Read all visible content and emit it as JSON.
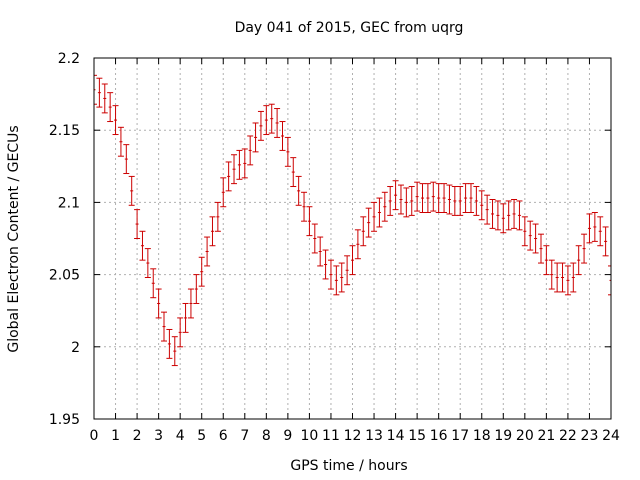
{
  "chart_data": {
    "type": "scatter",
    "title": "Day 041 of 2015, GEC from uqrg",
    "xlabel": "GPS time / hours",
    "ylabel": "Global Electron Content / GECUs",
    "xlim": [
      0,
      24
    ],
    "ylim": [
      1.95,
      2.2
    ],
    "xticks": [
      "0",
      "1",
      "2",
      "3",
      "4",
      "5",
      "6",
      "7",
      "8",
      "9",
      "10",
      "11",
      "12",
      "13",
      "14",
      "15",
      "16",
      "17",
      "18",
      "19",
      "20",
      "21",
      "22",
      "23",
      "24"
    ],
    "yticks": [
      "1.95",
      "2",
      "2.05",
      "2.1",
      "2.15",
      "2.2"
    ],
    "grid": true,
    "legend": "none",
    "series_color": "#cc0000",
    "error": 0.01,
    "series": [
      {
        "x": [
          0.0,
          0.25,
          0.5,
          0.75,
          1.0,
          1.25,
          1.5,
          1.75,
          2.0,
          2.25,
          2.5,
          2.75,
          3.0,
          3.25,
          3.5,
          3.75,
          4.0,
          4.25,
          4.5,
          4.75,
          5.0,
          5.25,
          5.5,
          5.75,
          6.0,
          6.25,
          6.5,
          6.75,
          7.0,
          7.25,
          7.5,
          7.75,
          8.0,
          8.25,
          8.5,
          8.75,
          9.0,
          9.25,
          9.5,
          9.75,
          10.0,
          10.25,
          10.5,
          10.75,
          11.0,
          11.25,
          11.5,
          11.75,
          12.0,
          12.25,
          12.5,
          12.75,
          13.0,
          13.25,
          13.5,
          13.75,
          14.0,
          14.25,
          14.5,
          14.75,
          15.0,
          15.25,
          15.5,
          15.75,
          16.0,
          16.25,
          16.5,
          16.75,
          17.0,
          17.25,
          17.5,
          17.75,
          18.0,
          18.25,
          18.5,
          18.75,
          19.0,
          19.25,
          19.5,
          19.75,
          20.0,
          20.25,
          20.5,
          20.75,
          21.0,
          21.25,
          21.5,
          21.75,
          22.0,
          22.25,
          22.5,
          22.75,
          23.0,
          23.25,
          23.5,
          23.75,
          24.0
        ],
        "y": [
          2.178,
          2.176,
          2.172,
          2.166,
          2.157,
          2.142,
          2.13,
          2.108,
          2.085,
          2.07,
          2.058,
          2.044,
          2.03,
          2.014,
          2.002,
          1.997,
          2.01,
          2.02,
          2.03,
          2.04,
          2.052,
          2.066,
          2.08,
          2.09,
          2.107,
          2.118,
          2.123,
          2.126,
          2.127,
          2.136,
          2.145,
          2.153,
          2.157,
          2.158,
          2.155,
          2.146,
          2.135,
          2.121,
          2.108,
          2.097,
          2.087,
          2.075,
          2.066,
          2.057,
          2.05,
          2.046,
          2.048,
          2.053,
          2.06,
          2.071,
          2.08,
          2.086,
          2.09,
          2.093,
          2.097,
          2.101,
          2.105,
          2.102,
          2.1,
          2.101,
          2.104,
          2.103,
          2.103,
          2.104,
          2.103,
          2.103,
          2.102,
          2.101,
          2.101,
          2.103,
          2.103,
          2.101,
          2.098,
          2.095,
          2.092,
          2.091,
          2.089,
          2.091,
          2.092,
          2.091,
          2.08,
          2.077,
          2.075,
          2.068,
          2.06,
          2.05,
          2.048,
          2.048,
          2.046,
          2.048,
          2.06,
          2.068,
          2.082,
          2.083,
          2.08,
          2.073,
          2.046
        ]
      }
    ]
  }
}
